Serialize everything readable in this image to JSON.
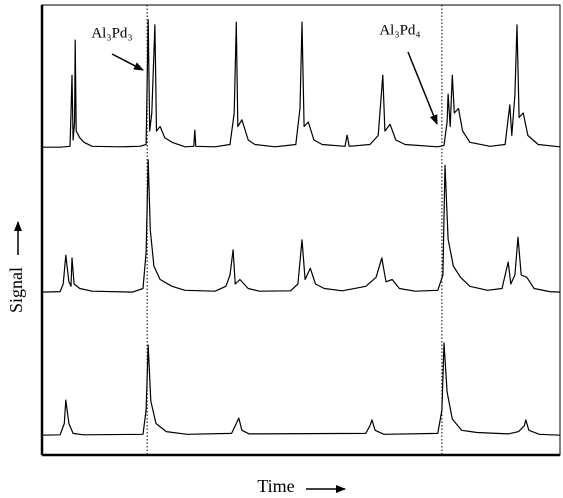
{
  "chart_data": {
    "type": "line",
    "xlabel": "Time",
    "ylabel": "Signal",
    "xlim": [
      0,
      100
    ],
    "ylim": [
      0,
      100
    ],
    "markers": [
      20.3,
      77.2
    ],
    "annotations": [
      {
        "text": "Al₃Pd₃"
      },
      {
        "text": "Al₃Pd₄"
      }
    ],
    "series": [
      {
        "color": "#000000",
        "x": [
          0,
          3.5,
          5.4,
          5.6,
          5.8,
          6.0,
          6.3,
          6.4,
          6.6,
          7.3,
          8.1,
          9.7,
          15.1,
          18.9,
          20.1,
          20.5,
          20.8,
          21.2,
          21.8,
          22.1,
          22.8,
          23.7,
          25.1,
          27.6,
          29.3,
          29.5,
          29.7,
          33.4,
          36.3,
          37.1,
          37.5,
          37.8,
          38.6,
          39.8,
          41.1,
          45.0,
          49.0,
          49.8,
          50.2,
          50.6,
          51.4,
          52.5,
          54.1,
          58.5,
          58.9,
          59.3,
          63.3,
          64.9,
          65.8,
          66.2,
          67.2,
          68.3,
          70.1,
          76.4,
          77.6,
          78.2,
          78.4,
          78.8,
          79.2,
          79.6,
          80.4,
          81.2,
          82.6,
          86.5,
          89.4,
          90.3,
          90.7,
          91.3,
          91.7,
          92.1,
          92.9,
          93.8,
          95.8,
          100
        ],
        "values": [
          68.4,
          68.4,
          68.6,
          76,
          84.4,
          70,
          74,
          92.2,
          72,
          70.5,
          69.5,
          68.6,
          68.5,
          68.6,
          69,
          96.7,
          72,
          76,
          95.6,
          72,
          73,
          70.5,
          69.5,
          68.5,
          68.6,
          72.2,
          68.6,
          68.5,
          69,
          76,
          96.2,
          73,
          74.5,
          70,
          69,
          68.5,
          69,
          77,
          96.2,
          73,
          74,
          70,
          69,
          68.6,
          71.1,
          68.6,
          69,
          71,
          84.4,
          72,
          73.5,
          70,
          69,
          68.5,
          68.8,
          74,
          80.2,
          73,
          84.4,
          76,
          77,
          72,
          69.5,
          68.6,
          69,
          77.8,
          71,
          80,
          95.6,
          75,
          76,
          71,
          69,
          68.5
        ]
      },
      {
        "color": "#000000",
        "x": [
          0,
          3.5,
          4.1,
          4.6,
          5.2,
          5.6,
          5.8,
          6.2,
          7.3,
          9.7,
          17.5,
          19.5,
          20.1,
          20.5,
          20.9,
          21.6,
          22.8,
          25.1,
          27.6,
          33.4,
          35.5,
          36.3,
          36.9,
          37.3,
          38.2,
          39.8,
          42,
          48,
          49.4,
          50.2,
          50.8,
          51.8,
          52.8,
          54.5,
          58,
          62.5,
          64.5,
          65.6,
          66.4,
          67.6,
          69,
          72,
          76.4,
          77.4,
          77.8,
          78.4,
          79.4,
          80.8,
          82.6,
          86,
          88.8,
          90.0,
          90.5,
          91.3,
          91.9,
          92.5,
          93.6,
          95,
          98,
          100
        ],
        "values": [
          36.2,
          36.3,
          38,
          44.4,
          38.5,
          37.5,
          43.8,
          38,
          37,
          36.4,
          36.2,
          37,
          45,
          65.6,
          50,
          42,
          39,
          37.5,
          36.6,
          36.4,
          37.5,
          40,
          45.6,
          38,
          39,
          37,
          36.4,
          36.5,
          38,
          47.8,
          39,
          41.5,
          38,
          37,
          36.5,
          37.5,
          39.5,
          43.8,
          38.5,
          39,
          37,
          36.4,
          36.6,
          40,
          64.4,
          48,
          42,
          39.5,
          37.5,
          36.6,
          37,
          42.9,
          38,
          40,
          48.4,
          40,
          39.5,
          37,
          36.3,
          36.2
        ]
      },
      {
        "color": "#000000",
        "x": [
          0,
          3.5,
          4.3,
          4.6,
          5.2,
          6.0,
          8,
          19.5,
          20.1,
          20.5,
          21.0,
          22,
          24,
          28,
          36.6,
          37.5,
          38,
          38.6,
          40,
          62.5,
          63.3,
          63.7,
          64.3,
          66,
          76.4,
          77.2,
          77.6,
          78.2,
          79.2,
          81,
          84,
          90,
          92,
          93.1,
          93.4,
          94,
          96,
          100
        ],
        "values": [
          4.4,
          4.5,
          7,
          12.2,
          7,
          4.8,
          4.5,
          4.6,
          10,
          24.4,
          12,
          7,
          5.2,
          4.6,
          4.8,
          7,
          8.2,
          5.5,
          4.7,
          4.8,
          6.5,
          7.8,
          5.5,
          4.6,
          4.8,
          10,
          24.9,
          14,
          8,
          5.5,
          5,
          4.7,
          5.2,
          6.5,
          7.8,
          5.5,
          4.6,
          4.4
        ]
      }
    ]
  }
}
